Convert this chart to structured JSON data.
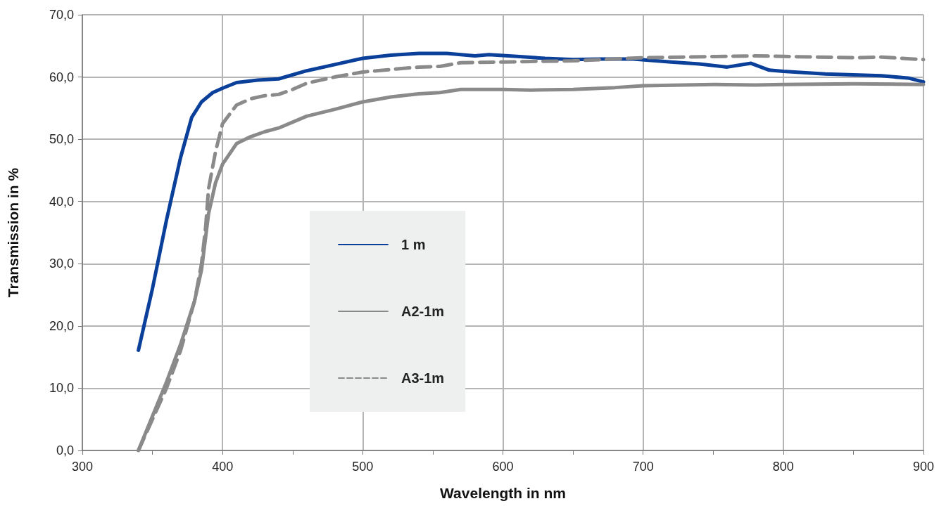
{
  "chart_data": {
    "type": "line",
    "xlabel": "Wavelength in nm",
    "ylabel": "Transmission in %",
    "xlim": [
      300,
      900
    ],
    "xticks": [
      300,
      {
        "value": 350,
        "label": null
      },
      400,
      {
        "value": 450,
        "label": null
      },
      500,
      {
        "value": 550,
        "label": null
      },
      600,
      {
        "value": 650,
        "label": null
      },
      700,
      {
        "value": 750,
        "label": null
      },
      800,
      {
        "value": 850,
        "label": null
      },
      900
    ],
    "ylim": [
      0,
      70
    ],
    "yticks": [
      {
        "value": 0,
        "label": "0,0"
      },
      {
        "value": 10,
        "label": "10,0"
      },
      {
        "value": 20,
        "label": "20,0"
      },
      {
        "value": 30,
        "label": "30,0"
      },
      {
        "value": 40,
        "label": "40,0"
      },
      {
        "value": 50,
        "label": "50,0"
      },
      {
        "value": 60,
        "label": "60,0"
      },
      {
        "value": 70,
        "label": "70,0"
      }
    ],
    "grid": true,
    "legend": "center left",
    "marker": "none",
    "series": [
      {
        "name": "1 m",
        "color": "#0a3f9a",
        "line_style": "solid",
        "x": [
          340,
          350,
          360,
          370,
          378,
          385,
          393,
          400,
          410,
          425,
          440,
          460,
          480,
          500,
          520,
          540,
          560,
          580,
          590,
          610,
          630,
          650,
          670,
          693,
          720,
          740,
          760,
          777,
          790,
          800,
          830,
          870,
          890,
          900
        ],
        "values": [
          16.1,
          26,
          37,
          47,
          53.5,
          56,
          57.5,
          58.2,
          59.1,
          59.5,
          59.7,
          61,
          62,
          63,
          63.5,
          63.8,
          63.8,
          63.4,
          63.6,
          63.3,
          63,
          62.8,
          62.9,
          62.9,
          62.4,
          62.1,
          61.6,
          62.2,
          61.1,
          60.9,
          60.5,
          60.2,
          59.8,
          59.2
        ]
      },
      {
        "name": "A2-1m",
        "color": "#8a8a8a",
        "line_style": "solid",
        "x": [
          340,
          350,
          360,
          370,
          380,
          385,
          390,
          395,
          400,
          410,
          420,
          430,
          440,
          460,
          480,
          500,
          520,
          540,
          555,
          570,
          600,
          620,
          650,
          680,
          700,
          750,
          780,
          800,
          850,
          900
        ],
        "values": [
          0,
          5.5,
          11,
          17,
          24,
          29,
          38,
          43,
          46,
          49.3,
          50.4,
          51.2,
          51.8,
          53.7,
          54.8,
          56,
          56.8,
          57.3,
          57.5,
          58,
          58,
          57.9,
          58,
          58.3,
          58.6,
          58.8,
          58.7,
          58.8,
          58.9,
          58.8
        ]
      },
      {
        "name": "A3-1m",
        "color": "#8a8a8a",
        "line_style": "dashed",
        "x": [
          340,
          350,
          360,
          370,
          380,
          385,
          388,
          390,
          395,
          400,
          410,
          420,
          430,
          440,
          450,
          460,
          480,
          500,
          520,
          540,
          555,
          570,
          600,
          620,
          650,
          700,
          730,
          780,
          800,
          850,
          870,
          900
        ],
        "values": [
          0,
          5,
          10,
          16,
          24,
          30,
          36,
          42,
          48,
          52.5,
          55.5,
          56.5,
          57,
          57.2,
          58,
          59,
          60,
          60.8,
          61.2,
          61.6,
          61.7,
          62.3,
          62.4,
          62.5,
          62.6,
          63.1,
          63.2,
          63.4,
          63.3,
          63.1,
          63.2,
          62.8
        ]
      }
    ]
  }
}
